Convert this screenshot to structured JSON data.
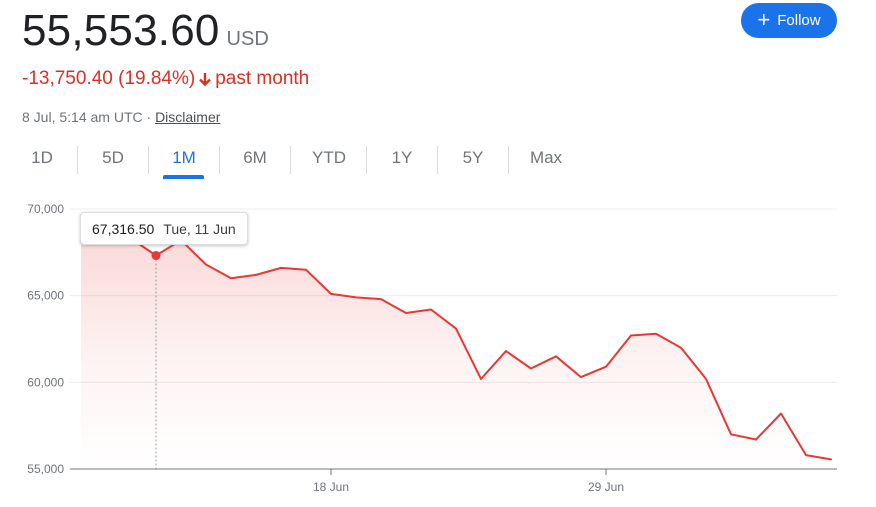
{
  "quote": {
    "price": "55,553.60",
    "currency": "USD",
    "change": "-13,750.40 (19.84%)",
    "change_period": "past month",
    "change_color": "#d93025",
    "timestamp": "8 Jul, 5:14 am UTC",
    "separator": "·",
    "disclaimer_label": "Disclaimer"
  },
  "follow_button": {
    "label": "Follow",
    "icon": "plus-icon",
    "color": "#1a73e8"
  },
  "ranges": {
    "active": "1M",
    "tabs": [
      "1D",
      "5D",
      "1M",
      "6M",
      "YTD",
      "1Y",
      "5Y",
      "Max"
    ]
  },
  "tooltip": {
    "value": "67,316.50",
    "date": "Tue, 11 Jun"
  },
  "chart_data": {
    "type": "area",
    "line_color": "#e53935",
    "y_ticks": [
      "70,000",
      "65,000",
      "60,000",
      "55,000"
    ],
    "y_tick_values": [
      70000,
      65000,
      60000,
      55000
    ],
    "ylim": [
      55000,
      70000
    ],
    "x_ticks": [
      "18 Jun",
      "29 Jun"
    ],
    "x_tick_positions": [
      10,
      21
    ],
    "xlim": [
      0,
      30
    ],
    "grid": true,
    "highlight_index": 3,
    "series": [
      {
        "x": [
          0,
          1,
          2,
          3,
          4,
          5,
          6,
          7,
          8,
          9,
          10,
          11,
          12,
          13,
          14,
          15,
          16,
          17,
          18,
          19,
          20,
          21,
          22,
          23,
          24,
          25,
          26,
          27,
          28,
          29,
          30
        ],
        "values": [
          68900,
          68700,
          68300,
          67316.5,
          68200,
          66800,
          66000,
          66200,
          66600,
          66500,
          65100,
          64900,
          64800,
          64000,
          64200,
          63100,
          60200,
          61800,
          60800,
          61500,
          60300,
          60900,
          62700,
          62800,
          62000,
          60200,
          57000,
          56700,
          58200,
          55800,
          55553.6
        ]
      }
    ]
  }
}
